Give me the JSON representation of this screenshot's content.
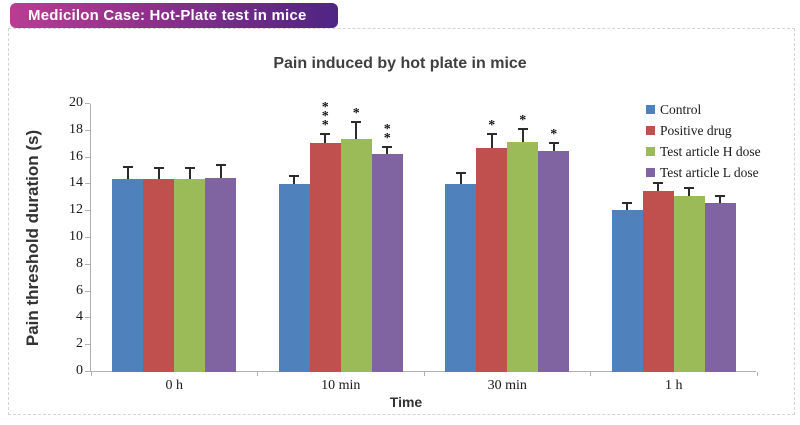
{
  "header": {
    "label": "Medicilon Case: Hot-Plate test in mice",
    "gradient_from": "#b93d92",
    "gradient_to": "#4e2583"
  },
  "chart_data": {
    "type": "bar",
    "title": "Pain induced by hot plate in mice",
    "xlabel": "Time",
    "ylabel": "Pain threshold duration (s)",
    "ylim": [
      0,
      20
    ],
    "yticks": [
      0,
      2,
      4,
      6,
      8,
      10,
      12,
      14,
      16,
      18,
      20
    ],
    "grid": false,
    "legend_position": "top-right",
    "error_bars": true,
    "categories": [
      "0 h",
      "10 min",
      "30 min",
      "1 h"
    ],
    "series": [
      {
        "name": "Control",
        "color": "#4f81bd",
        "values": [
          14.4,
          14.0,
          14.0,
          12.1
        ],
        "errors": [
          1.0,
          0.7,
          0.9,
          0.6
        ],
        "sig": [
          "",
          "",
          "",
          ""
        ]
      },
      {
        "name": "Positive drug",
        "color": "#c0504d",
        "values": [
          14.4,
          17.1,
          16.7,
          13.5
        ],
        "errors": [
          0.9,
          0.7,
          1.1,
          0.7
        ],
        "sig": [
          "",
          "***",
          "*",
          ""
        ]
      },
      {
        "name": "Test article H dose",
        "color": "#9bbb59",
        "values": [
          14.4,
          17.4,
          17.2,
          13.1
        ],
        "errors": [
          0.9,
          1.3,
          1.0,
          0.7
        ],
        "sig": [
          "",
          "*",
          "*",
          ""
        ]
      },
      {
        "name": "Test article L dose",
        "color": "#8064a2",
        "values": [
          14.5,
          16.3,
          16.5,
          12.6
        ],
        "errors": [
          1.0,
          0.6,
          0.7,
          0.6
        ],
        "sig": [
          "",
          "**",
          "*",
          ""
        ]
      }
    ]
  }
}
